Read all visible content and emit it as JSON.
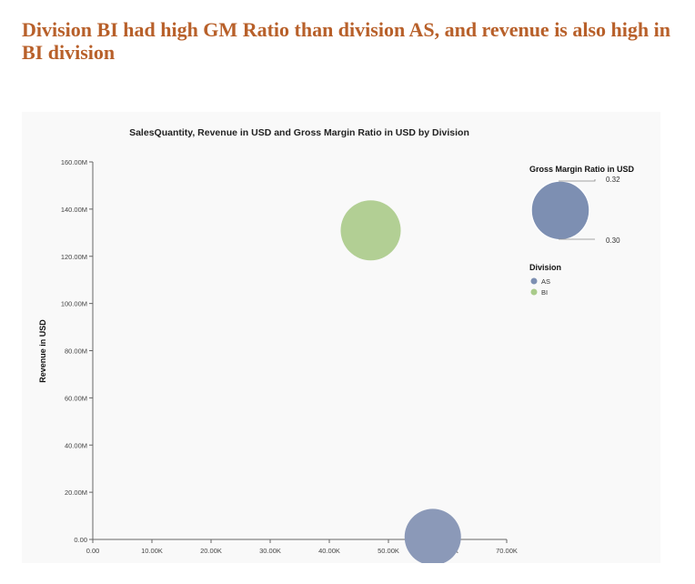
{
  "headline": "Division BI had high GM Ratio than division AS, and revenue is also high in BI division",
  "chart_data": {
    "type": "bubble",
    "title": "SalesQuantity, Revenue in USD and Gross Margin Ratio in USD by Division",
    "xlabel": "",
    "ylabel": "Revenue in USD",
    "xlim": [
      0,
      70000
    ],
    "ylim": [
      0,
      160000000
    ],
    "x_ticks": [
      "0.00",
      "10.00K",
      "20.00K",
      "30.00K",
      "40.00K",
      "50.00K",
      "60.00K",
      "70.00K"
    ],
    "y_ticks": [
      "0.00",
      "20.00M",
      "40.00M",
      "60.00M",
      "80.00M",
      "100.00M",
      "120.00M",
      "140.00M",
      "160.00M"
    ],
    "x_tick_values": [
      0,
      10000,
      20000,
      30000,
      40000,
      50000,
      60000,
      70000
    ],
    "y_tick_values": [
      0,
      20000000,
      40000000,
      60000000,
      80000000,
      100000000,
      120000000,
      140000000,
      160000000
    ],
    "series": [
      {
        "name": "AS",
        "x": 57500,
        "y": 1000000,
        "size": 0.3,
        "color": "#8b99b8"
      },
      {
        "name": "BI",
        "x": 47000,
        "y": 131000000,
        "size": 0.32,
        "color": "#b2cf94"
      }
    ],
    "size_legend": {
      "title": "Gross Margin Ratio in USD",
      "max_label": "0.32",
      "min_label": "0.30",
      "color": "#7d8fb2"
    },
    "color_legend": {
      "title": "Division",
      "items": [
        {
          "label": "AS",
          "color": "#7d8fb2"
        },
        {
          "label": "BI",
          "color": "#a9cb8a"
        }
      ]
    },
    "grid": false,
    "legend_position": "right"
  }
}
